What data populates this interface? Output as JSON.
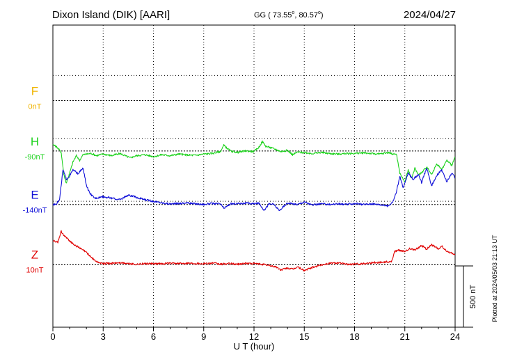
{
  "header": {
    "station": "Dixon Island (DIK)  [AARI]",
    "coords": "GG ( 73.55",
    "coords_lon": ",  80.57",
    "coords_end": ")",
    "degree_symbol": "o",
    "date": "2024/04/27"
  },
  "footer": {
    "plotted": "Plotted at 2024/05/03 21:13 UT"
  },
  "colors": {
    "F": "#f0b400",
    "H": "#1ed21e",
    "E": "#1010d8",
    "Z": "#e00000",
    "axis": "#000000"
  },
  "chart_data": {
    "type": "line",
    "title": "Dixon Island (DIK)  [AARI]",
    "xlabel": "U T (hour)",
    "ylabel": "",
    "x_ticks": [
      0,
      3,
      6,
      9,
      12,
      15,
      18,
      21,
      24
    ],
    "x_tick_labels": [
      "0",
      "3",
      "6",
      "9",
      "12",
      "15",
      "18",
      "21",
      "24"
    ],
    "xlim": [
      0,
      24
    ],
    "ylim": [
      -200,
      760
    ],
    "grid": true,
    "scale_bar": {
      "label": "500 nT",
      "value": 500
    },
    "units": "nT",
    "series": [
      {
        "name": "F",
        "offset_label": "0nT",
        "baseline_value": 520,
        "color": "#f0b400",
        "x": [],
        "y": []
      },
      {
        "name": "H",
        "offset_label": "-90nT",
        "baseline_value": 360,
        "color": "#1ed21e",
        "x": [
          0,
          0.25,
          0.5,
          0.65,
          0.8,
          1.0,
          1.2,
          1.4,
          1.6,
          1.8,
          2.0,
          2.3,
          2.6,
          3.0,
          3.5,
          4.0,
          4.3,
          4.6,
          5.0,
          5.5,
          6.0,
          6.5,
          7.0,
          7.5,
          8.0,
          8.5,
          9.0,
          9.5,
          10.0,
          10.2,
          10.4,
          10.6,
          11.0,
          11.5,
          12.0,
          12.3,
          12.5,
          12.7,
          13.0,
          13.3,
          13.6,
          14.0,
          14.3,
          14.6,
          15.0,
          15.5,
          16.0,
          16.5,
          17.0,
          17.5,
          18.0,
          18.5,
          19.0,
          19.5,
          20.0,
          20.3,
          20.5,
          20.7,
          20.9,
          21.0,
          21.2,
          21.4,
          21.6,
          21.8,
          22.0,
          22.3,
          22.6,
          22.9,
          23.2,
          23.5,
          23.8,
          24.0
        ],
        "y": [
          380,
          372,
          355,
          285,
          258,
          290,
          325,
          345,
          330,
          348,
          350,
          352,
          345,
          350,
          345,
          352,
          345,
          338,
          345,
          348,
          342,
          348,
          345,
          350,
          347,
          346,
          350,
          352,
          358,
          378,
          368,
          360,
          355,
          360,
          358,
          372,
          390,
          375,
          370,
          365,
          358,
          362,
          348,
          356,
          355,
          352,
          355,
          352,
          350,
          352,
          352,
          354,
          352,
          350,
          355,
          350,
          350,
          290,
          270,
          262,
          300,
          272,
          305,
          285,
          290,
          310,
          285,
          320,
          300,
          330,
          315,
          340
        ]
      },
      {
        "name": "E",
        "offset_label": "-140nT",
        "baseline_value": 190,
        "color": "#1010d8",
        "x": [
          0,
          0.2,
          0.4,
          0.6,
          0.8,
          1.0,
          1.2,
          1.5,
          1.8,
          2.0,
          2.2,
          2.5,
          3.0,
          3.5,
          4.0,
          4.5,
          5.0,
          5.5,
          6.0,
          6.5,
          7.0,
          7.5,
          8.0,
          8.5,
          9.0,
          9.5,
          10.0,
          10.2,
          10.4,
          10.6,
          11.0,
          11.5,
          12.0,
          12.3,
          12.6,
          12.9,
          13.2,
          13.5,
          13.8,
          14.0,
          14.3,
          14.6,
          15.0,
          15.5,
          16.0,
          16.5,
          17.0,
          17.5,
          18.0,
          18.5,
          19.0,
          19.5,
          20.0,
          20.3,
          20.5,
          20.7,
          20.9,
          21.2,
          21.5,
          21.8,
          22.0,
          22.3,
          22.6,
          22.9,
          23.2,
          23.5,
          23.8,
          24.0
        ],
        "y": [
          190,
          192,
          205,
          300,
          270,
          280,
          300,
          288,
          305,
          250,
          225,
          210,
          215,
          210,
          205,
          220,
          212,
          205,
          200,
          195,
          192,
          193,
          195,
          192,
          190,
          193,
          192,
          178,
          185,
          192,
          193,
          194,
          192,
          194,
          172,
          192,
          190,
          170,
          185,
          195,
          192,
          190,
          198,
          188,
          192,
          190,
          192,
          190,
          193,
          190,
          192,
          190,
          185,
          200,
          230,
          280,
          242,
          290,
          270,
          285,
          260,
          305,
          250,
          282,
          300,
          262,
          290,
          275
        ]
      },
      {
        "name": "Z",
        "offset_label": "10nT",
        "baseline_value": 0,
        "color": "#e00000",
        "x": [
          0,
          0.3,
          0.5,
          0.7,
          0.9,
          1.2,
          1.5,
          1.8,
          2.0,
          2.3,
          2.6,
          3.0,
          3.5,
          4.0,
          4.5,
          5.0,
          5.5,
          6.0,
          6.5,
          7.0,
          7.5,
          8.0,
          8.5,
          9.0,
          9.5,
          10.0,
          10.5,
          11.0,
          11.5,
          12.0,
          12.5,
          13.0,
          13.3,
          13.6,
          14.0,
          14.3,
          14.6,
          15.0,
          15.5,
          16.0,
          16.5,
          17.0,
          17.5,
          18.0,
          18.5,
          19.0,
          19.5,
          20.0,
          20.2,
          20.4,
          20.6,
          21.0,
          21.3,
          21.6,
          22.0,
          22.3,
          22.6,
          23.0,
          23.2,
          23.5,
          23.8,
          24.0
        ],
        "y": [
          75,
          70,
          105,
          88,
          80,
          65,
          55,
          45,
          38,
          22,
          8,
          2,
          3,
          5,
          2,
          0,
          2,
          1,
          2,
          3,
          2,
          4,
          3,
          2,
          4,
          0,
          2,
          0,
          3,
          2,
          0,
          -5,
          -8,
          -18,
          -12,
          -16,
          -8,
          -20,
          -10,
          -2,
          3,
          5,
          0,
          0,
          2,
          5,
          6,
          8,
          8,
          40,
          45,
          40,
          50,
          45,
          60,
          48,
          62,
          48,
          58,
          40,
          35,
          30
        ]
      }
    ]
  }
}
